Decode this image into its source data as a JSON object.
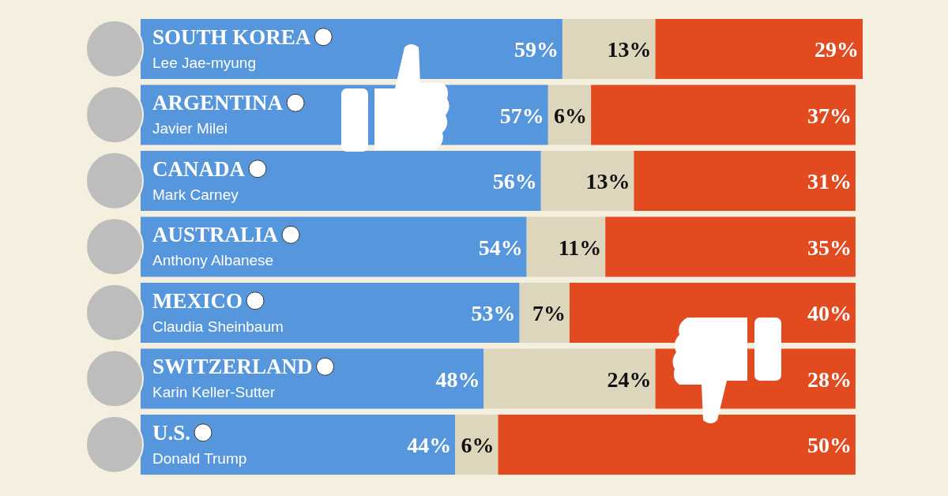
{
  "chart_data": {
    "type": "bar",
    "orientation": "horizontal",
    "stacked": true,
    "categories": [
      "SOUTH KOREA\nLee Jae-myung",
      "ARGENTINA\nJavier Milei",
      "CANADA\nMark Carney",
      "AUSTRALIA\nAnthony Albanese",
      "MEXICO\nClaudia Sheinbaum",
      "SWITZERLAND\nKarin Keller-Sutter",
      "U.S.\nDonald Trump"
    ],
    "xlim": [
      0,
      101
    ],
    "tick_labels": "y",
    "series": [
      {
        "color": "#5596dc",
        "values": [
          59,
          57,
          56,
          54,
          53,
          48,
          44
        ],
        "value_labels": [
          "59%",
          "57%",
          "56%",
          "54%",
          "53%",
          "48%",
          "44%"
        ]
      },
      {
        "color": "#ddd5bc",
        "values": [
          13,
          6,
          13,
          11,
          7,
          24,
          6
        ],
        "value_labels": [
          "13%",
          "6%",
          "13%",
          "11%",
          "7%",
          "24%",
          "6%"
        ]
      },
      {
        "color": "#e24a1f",
        "values": [
          29,
          37,
          31,
          35,
          40,
          28,
          50
        ],
        "value_labels": [
          "29%",
          "37%",
          "31%",
          "35%",
          "40%",
          "28%",
          "50%"
        ]
      }
    ]
  }
}
